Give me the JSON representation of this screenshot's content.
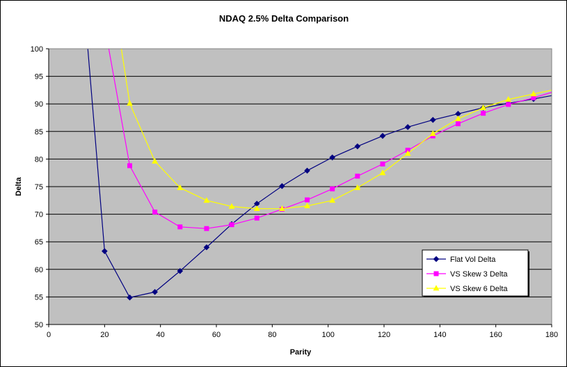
{
  "chart_data": {
    "type": "line",
    "title": "NDAQ 2.5% Delta Comparison",
    "xlabel": "Parity",
    "ylabel": "Delta",
    "xlim": [
      0,
      180
    ],
    "ylim": [
      50,
      100
    ],
    "xticks": [
      0,
      20,
      40,
      60,
      80,
      100,
      120,
      140,
      160,
      180
    ],
    "yticks": [
      50,
      55,
      60,
      65,
      70,
      75,
      80,
      85,
      90,
      95,
      100
    ],
    "grid": "horizontal",
    "legend_position": "bottom-right",
    "plot_background": "#c0c0c0",
    "series": [
      {
        "name": "Flat Vol Delta",
        "color": "#000080",
        "marker": "diamond",
        "points": [
          [
            14,
            100
          ],
          [
            20,
            63.3
          ],
          [
            29,
            54.9
          ],
          [
            38,
            55.9
          ],
          [
            47,
            59.7
          ],
          [
            56.5,
            64.0
          ],
          [
            65.5,
            68.2
          ],
          [
            74.5,
            71.9
          ],
          [
            83.5,
            75.1
          ],
          [
            92.5,
            77.9
          ],
          [
            101.5,
            80.3
          ],
          [
            110.5,
            82.3
          ],
          [
            119.5,
            84.2
          ],
          [
            128.5,
            85.8
          ],
          [
            137.5,
            87.1
          ],
          [
            146.5,
            88.2
          ],
          [
            155.5,
            89.3
          ],
          [
            164.5,
            90.1
          ],
          [
            173.5,
            90.9
          ],
          [
            180,
            91.5
          ]
        ]
      },
      {
        "name": "VS Skew 3 Delta",
        "color": "#ff00ff",
        "marker": "square",
        "points": [
          [
            21.5,
            100
          ],
          [
            29,
            78.8
          ],
          [
            38,
            70.4
          ],
          [
            47,
            67.7
          ],
          [
            56.5,
            67.4
          ],
          [
            65.5,
            68.1
          ],
          [
            74.5,
            69.3
          ],
          [
            83.5,
            70.9
          ],
          [
            92.5,
            72.6
          ],
          [
            101.5,
            74.6
          ],
          [
            110.5,
            76.9
          ],
          [
            119.5,
            79.1
          ],
          [
            128.5,
            81.6
          ],
          [
            137.5,
            84.2
          ],
          [
            146.5,
            86.4
          ],
          [
            155.5,
            88.3
          ],
          [
            164.5,
            89.9
          ],
          [
            173.5,
            91.1
          ],
          [
            180,
            92.1
          ]
        ]
      },
      {
        "name": "VS Skew 6 Delta",
        "color": "#ffff00",
        "marker": "triangle",
        "points": [
          [
            26,
            100
          ],
          [
            29,
            90.1
          ],
          [
            38,
            79.6
          ],
          [
            47,
            74.8
          ],
          [
            56.5,
            72.5
          ],
          [
            65.5,
            71.4
          ],
          [
            74.5,
            71.0
          ],
          [
            83.5,
            71.0
          ],
          [
            92.5,
            71.5
          ],
          [
            101.5,
            72.5
          ],
          [
            110.5,
            74.8
          ],
          [
            119.5,
            77.5
          ],
          [
            128.5,
            81.0
          ],
          [
            137.5,
            84.6
          ],
          [
            146.5,
            87.3
          ],
          [
            155.5,
            89.3
          ],
          [
            164.5,
            90.8
          ],
          [
            173.5,
            91.8
          ],
          [
            180,
            92.5
          ]
        ]
      }
    ]
  }
}
